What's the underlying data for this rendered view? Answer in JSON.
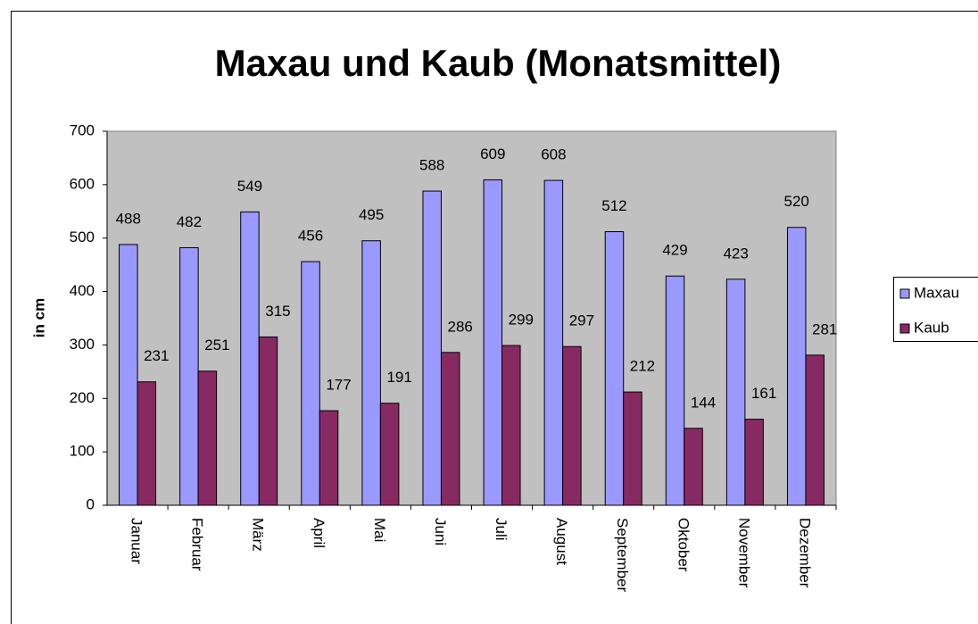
{
  "chart_data": {
    "type": "bar",
    "title": "Maxau und Kaub (Monatsmittel)",
    "y_label": "in cm",
    "categories": [
      "Januar",
      "Februar",
      "März",
      "April",
      "Mai",
      "Juni",
      "Juli",
      "August",
      "September",
      "Oktober",
      "November",
      "Dezember"
    ],
    "series": [
      {
        "name": "Maxau",
        "color": "#9999ff",
        "values": [
          488,
          482,
          549,
          456,
          495,
          588,
          609,
          608,
          512,
          429,
          423,
          520
        ]
      },
      {
        "name": "Kaub",
        "color": "#882a62",
        "values": [
          231,
          251,
          315,
          177,
          191,
          286,
          299,
          297,
          212,
          144,
          161,
          281
        ]
      }
    ],
    "ylim": [
      0,
      700
    ],
    "yticks": [
      0,
      100,
      200,
      300,
      400,
      500,
      600,
      700
    ],
    "grid": false,
    "legend": "right"
  }
}
